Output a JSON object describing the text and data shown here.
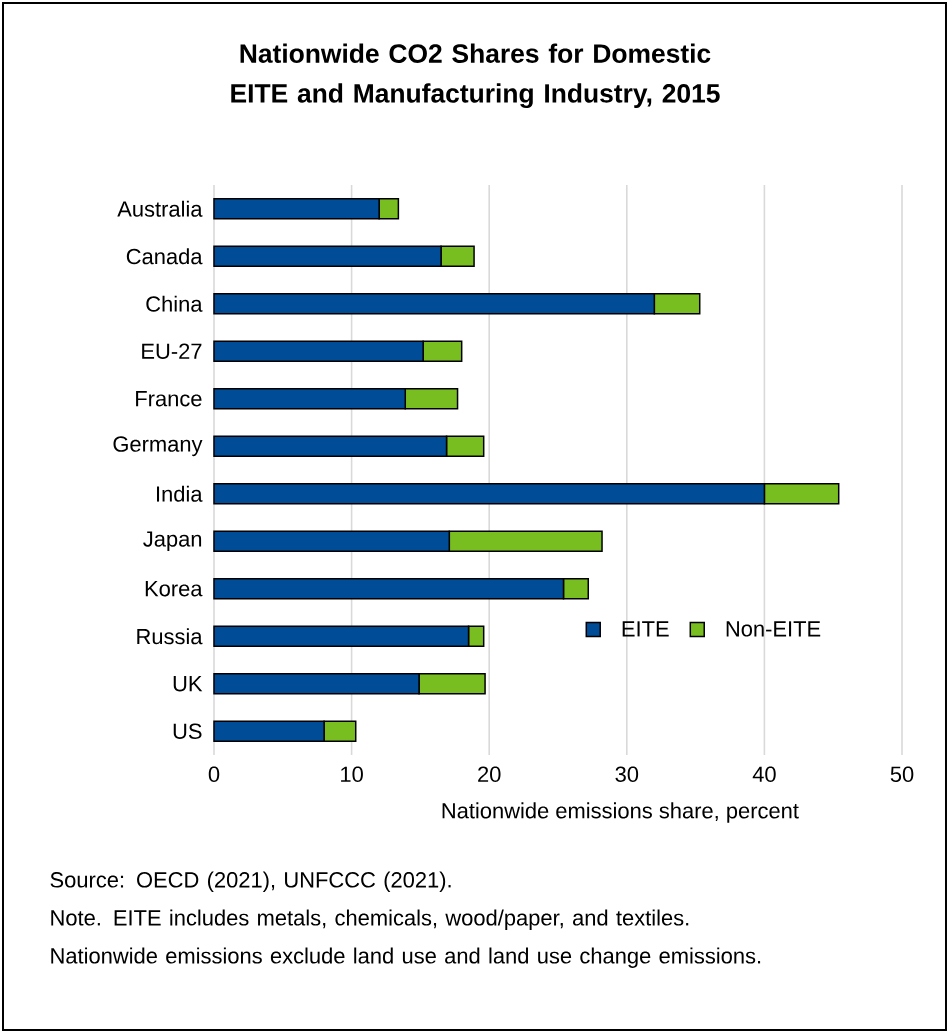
{
  "chart_data": {
    "type": "bar",
    "orientation": "horizontal",
    "stacked": true,
    "title": "Nationwide CO2 Shares for Domestic EITE and Manufacturing Industry, 2015",
    "xlabel": "Nationwide emissions share, percent",
    "categories": [
      "Australia",
      "Canada",
      "China",
      "EU-27",
      "France",
      "Germany",
      "India",
      "Japan",
      "Korea",
      "Russia",
      "UK",
      "US"
    ],
    "series": [
      {
        "name": "EITE",
        "color": "#004c97",
        "values": [
          12.0,
          16.5,
          32.0,
          15.2,
          13.9,
          16.9,
          40.0,
          17.1,
          25.4,
          18.5,
          14.9,
          8.0
        ]
      },
      {
        "name": "Non-EITE",
        "color": "#78be20",
        "values": [
          1.4,
          2.4,
          3.3,
          2.8,
          3.8,
          2.7,
          5.4,
          11.1,
          1.8,
          1.1,
          4.8,
          2.3
        ]
      }
    ],
    "xlim": [
      0,
      50
    ],
    "xticks": [
      0,
      10,
      20,
      30,
      40,
      50
    ],
    "grid": "x",
    "legend": "right",
    "annotations": [
      "Source: OECD (2021), UNFCCC (2021).",
      "Note. EITE includes metals, chemicals, wood/paper, and textiles.",
      "Nationwide emissions exclude land use and land use change emissions."
    ]
  }
}
